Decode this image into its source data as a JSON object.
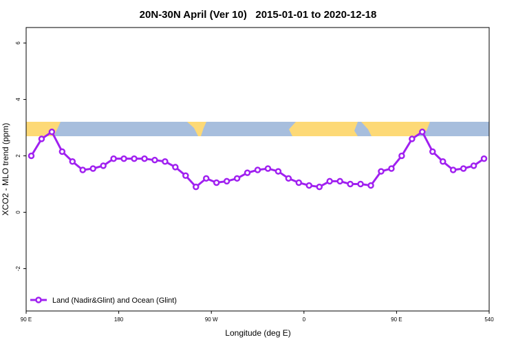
{
  "chart_data": {
    "type": "line",
    "title": "20N-30N April (Ver 10)   2015-01-01 to 2020-12-18",
    "x_label": "Longitude (deg E)",
    "y_label": "XCO2 - MLO trend (ppm)",
    "x": [
      95,
      105,
      115,
      125,
      135,
      145,
      155,
      165,
      175,
      185,
      195,
      205,
      215,
      225,
      235,
      245,
      255,
      265,
      275,
      285,
      295,
      305,
      315,
      325,
      335,
      345,
      355,
      365,
      375,
      385,
      395,
      405,
      415,
      425,
      435,
      445,
      455,
      465,
      475,
      485,
      495,
      505,
      515,
      525,
      535
    ],
    "series": [
      {
        "name": "Land (Nadir&Glint) and Ocean (Glint)",
        "color": "#a020f0",
        "values": [
          2.0,
          2.6,
          2.85,
          2.15,
          1.8,
          1.5,
          1.55,
          1.65,
          1.9,
          1.9,
          1.9,
          1.9,
          1.85,
          1.8,
          1.6,
          1.3,
          0.9,
          1.2,
          1.05,
          1.1,
          1.2,
          1.4,
          1.5,
          1.55,
          1.45,
          1.2,
          1.05,
          0.95,
          0.9,
          1.1,
          1.1,
          1.0,
          1.0,
          0.95,
          1.45,
          1.55,
          2.0,
          2.6,
          2.85,
          2.15,
          1.8,
          1.5,
          1.55,
          1.65,
          1.9
        ]
      }
    ],
    "xlim": [
      90,
      540
    ],
    "xticks": [
      {
        "value": 90,
        "label": "90 E"
      },
      180,
      {
        "value": 270,
        "label": "90 W"
      },
      {
        "value": 360,
        "label": "0"
      },
      {
        "value": 450,
        "label": "90 E"
      },
      540
    ],
    "ylim": [
      -3.5,
      6.55
    ],
    "yticks": [
      -2,
      0,
      2,
      4,
      6
    ],
    "legend": "bottomleft"
  }
}
